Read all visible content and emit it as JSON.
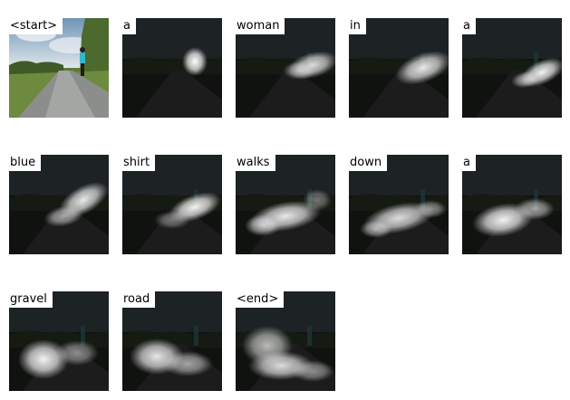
{
  "panels": [
    {
      "word": "<start>",
      "kind": "photo"
    },
    {
      "word": "a",
      "kind": "attention"
    },
    {
      "word": "woman",
      "kind": "attention"
    },
    {
      "word": "in",
      "kind": "attention"
    },
    {
      "word": "a",
      "kind": "attention"
    },
    {
      "word": "blue",
      "kind": "attention"
    },
    {
      "word": "shirt",
      "kind": "attention"
    },
    {
      "word": "walks",
      "kind": "attention"
    },
    {
      "word": "down",
      "kind": "attention"
    },
    {
      "word": "a",
      "kind": "attention"
    },
    {
      "word": "gravel",
      "kind": "attention"
    },
    {
      "word": "road",
      "kind": "attention"
    },
    {
      "word": "<end>",
      "kind": "attention"
    }
  ]
}
